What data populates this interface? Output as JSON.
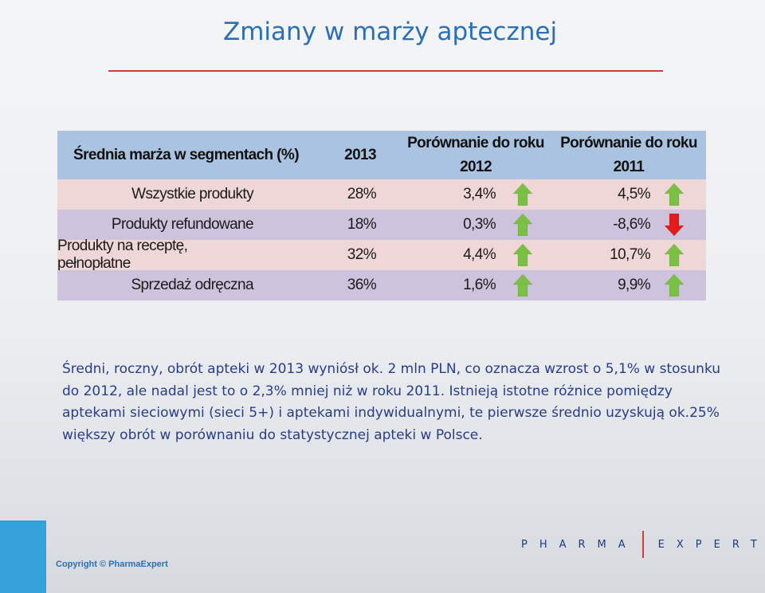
{
  "title": "Zmiany w marży aptecznej",
  "table": {
    "headers": {
      "segment": "Średnia marża w segmentach (%)",
      "year": "2013",
      "cmp2012_line1": "Porównanie do roku",
      "cmp2012_line2": "2012",
      "cmp2011_line1": "Porównanie do roku",
      "cmp2011_line2": "2011"
    },
    "rows": [
      {
        "label": "Wszystkie produkty",
        "v2013": "28%",
        "v2012": "3,4%",
        "trend2012": "up",
        "v2011": "4,5%",
        "trend2011": "up"
      },
      {
        "label": "Produkty refundowane",
        "v2013": "18%",
        "v2012": "0,3%",
        "trend2012": "up",
        "v2011": "-8,6%",
        "trend2011": "down"
      },
      {
        "label": "Produkty na receptę, pełnopłatne",
        "v2013": "32%",
        "v2012": "4,4%",
        "trend2012": "up",
        "v2011": "10,7%",
        "trend2011": "up"
      },
      {
        "label": "Sprzedaż odręczna",
        "v2013": "36%",
        "v2012": "1,6%",
        "trend2012": "up",
        "v2011": "9,9%",
        "trend2011": "up"
      }
    ],
    "colors": {
      "up": "#7ac143",
      "down": "#e21b1b",
      "header_bg": "#a9c3e0",
      "row_pink": "#f0d7d7",
      "row_lilac": "#cec3dc"
    }
  },
  "paragraph": "Średni, roczny, obrót apteki w 2013 wyniósł ok. 2 mln PLN, co oznacza wzrost o 5,1% w stosunku do 2012, ale nadal jest to o 2,3% mniej niż w roku 2011. Istnieją istotne różnice pomiędzy aptekami sieciowymi (sieci 5+) i aptekami indywidualnymi, te pierwsze średnio uzyskują ok.25% większy obrót w porównaniu do statystycznej apteki w Polsce.",
  "footer": {
    "copyright": "Copyright © PharmaExpert",
    "logo_left": "PHARMA",
    "logo_right": "EXPERT"
  }
}
